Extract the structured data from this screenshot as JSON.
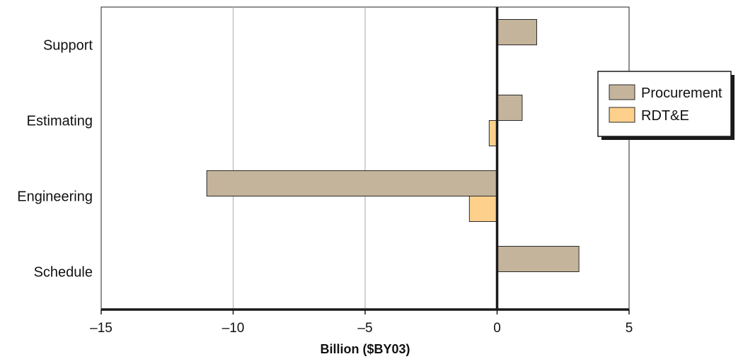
{
  "chart_data": {
    "type": "bar",
    "orientation": "horizontal",
    "categories": [
      "Support",
      "Estimating",
      "Engineering",
      "Schedule"
    ],
    "series": [
      {
        "name": "Procurement",
        "color": "#c4b49b",
        "values": [
          1.5,
          0.95,
          -11.0,
          3.1
        ]
      },
      {
        "name": "RDT&E",
        "color": "#fdd08c",
        "values": [
          0.0,
          -0.3,
          -1.05,
          0.0
        ]
      }
    ],
    "xlabel": "Billion ($BY03)",
    "xlim": [
      -15,
      5
    ],
    "xticks": [
      -15,
      -10,
      -5,
      0,
      5
    ],
    "xtick_labels": [
      "–15",
      "–10",
      "–5",
      "0",
      "5"
    ],
    "grid": "vertical",
    "legend_position": "right"
  }
}
